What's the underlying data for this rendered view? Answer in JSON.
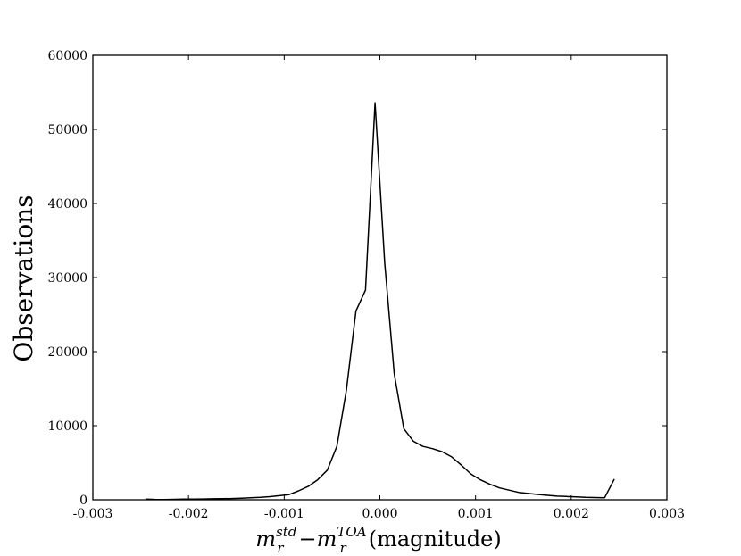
{
  "chart_data": {
    "type": "line",
    "title": "",
    "ylabel": "Observations",
    "xlabel": {
      "var": "m",
      "sub": "r",
      "sup1": "std",
      "minus": "−",
      "sup2": "TOA",
      "unit": "(magnitude)"
    },
    "xlim": [
      -0.003,
      0.003
    ],
    "ylim": [
      0,
      60000
    ],
    "x_ticks": [
      -0.003,
      -0.002,
      -0.001,
      0.0,
      0.001,
      0.002,
      0.003
    ],
    "x_tick_labels": [
      "-0.003",
      "-0.002",
      "-0.001",
      "0.000",
      "0.001",
      "0.002",
      "0.003"
    ],
    "y_ticks": [
      0,
      10000,
      20000,
      30000,
      40000,
      50000,
      60000
    ],
    "y_tick_labels": [
      "0",
      "10000",
      "20000",
      "30000",
      "40000",
      "50000",
      "60000"
    ],
    "grid": false,
    "line_color": "#000000",
    "series": [
      {
        "x": [
          -0.00245,
          -0.00235,
          -0.00225,
          -0.00215,
          -0.00205,
          -0.00195,
          -0.00185,
          -0.00175,
          -0.00165,
          -0.00155,
          -0.00145,
          -0.00135,
          -0.00125,
          -0.00115,
          -0.00105,
          -0.00095,
          -0.00085,
          -0.00075,
          -0.00065,
          -0.00055,
          -0.00045,
          -0.00035,
          -0.00025,
          -0.00015,
          -5e-05,
          5e-05,
          0.00015,
          0.00025,
          0.00035,
          0.00045,
          0.00055,
          0.00065,
          0.00075,
          0.00085,
          0.00095,
          0.00105,
          0.00115,
          0.00125,
          0.00135,
          0.00145,
          0.00155,
          0.00165,
          0.00175,
          0.00185,
          0.00195,
          0.00205,
          0.00215,
          0.00225,
          0.00235,
          0.00245
        ],
        "values": [
          100,
          50,
          40,
          60,
          80,
          100,
          110,
          130,
          150,
          170,
          200,
          260,
          330,
          420,
          550,
          700,
          1200,
          1800,
          2700,
          4000,
          7200,
          14800,
          25500,
          28300,
          53600,
          32000,
          17000,
          9600,
          7900,
          7200,
          6900,
          6500,
          5800,
          4700,
          3500,
          2700,
          2100,
          1600,
          1300,
          1000,
          850,
          720,
          600,
          500,
          450,
          380,
          330,
          300,
          280,
          2800
        ]
      }
    ]
  }
}
